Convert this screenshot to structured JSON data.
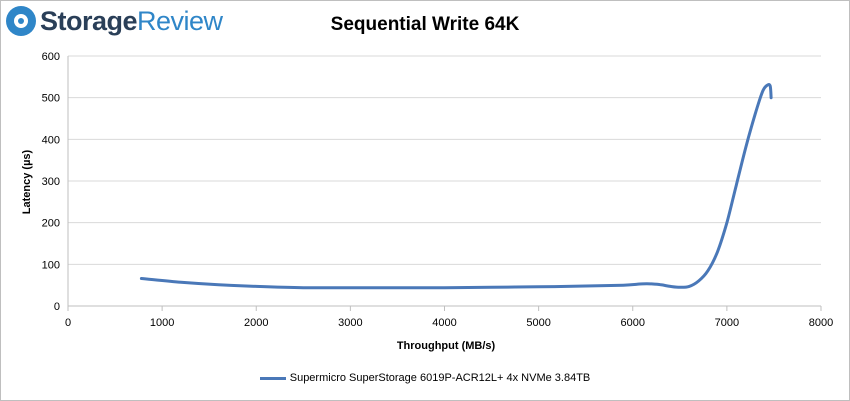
{
  "brand": {
    "part1": "Storage",
    "part2": "Review"
  },
  "chart_data": {
    "type": "line",
    "title": "Sequential Write 64K",
    "xlabel": "Throughput (MB/s)",
    "ylabel": "Latency (µs)",
    "xlim": [
      0,
      8000
    ],
    "ylim": [
      0,
      600
    ],
    "xticks": [
      0,
      1000,
      2000,
      3000,
      4000,
      5000,
      6000,
      7000,
      8000
    ],
    "yticks": [
      0,
      100,
      200,
      300,
      400,
      500,
      600
    ],
    "grid": true,
    "legend_position": "bottom",
    "series": [
      {
        "name": "Supermicro SuperStorage 6019P-ACR12L+ 4x NVMe 3.84TB",
        "color": "#4a78b8",
        "x": [
          780,
          1200,
          1600,
          2000,
          2500,
          3000,
          3500,
          4000,
          4500,
          5000,
          5500,
          5900,
          6100,
          6200,
          6300,
          6400,
          6500,
          6600,
          6700,
          6800,
          6900,
          7000,
          7100,
          7200,
          7300,
          7380,
          7430,
          7460,
          7470
        ],
        "y": [
          66,
          57,
          51,
          47,
          44,
          44,
          44,
          44,
          45,
          46,
          48,
          50,
          53,
          53,
          51,
          47,
          45,
          47,
          60,
          85,
          130,
          200,
          290,
          380,
          460,
          515,
          530,
          528,
          500
        ]
      }
    ]
  }
}
